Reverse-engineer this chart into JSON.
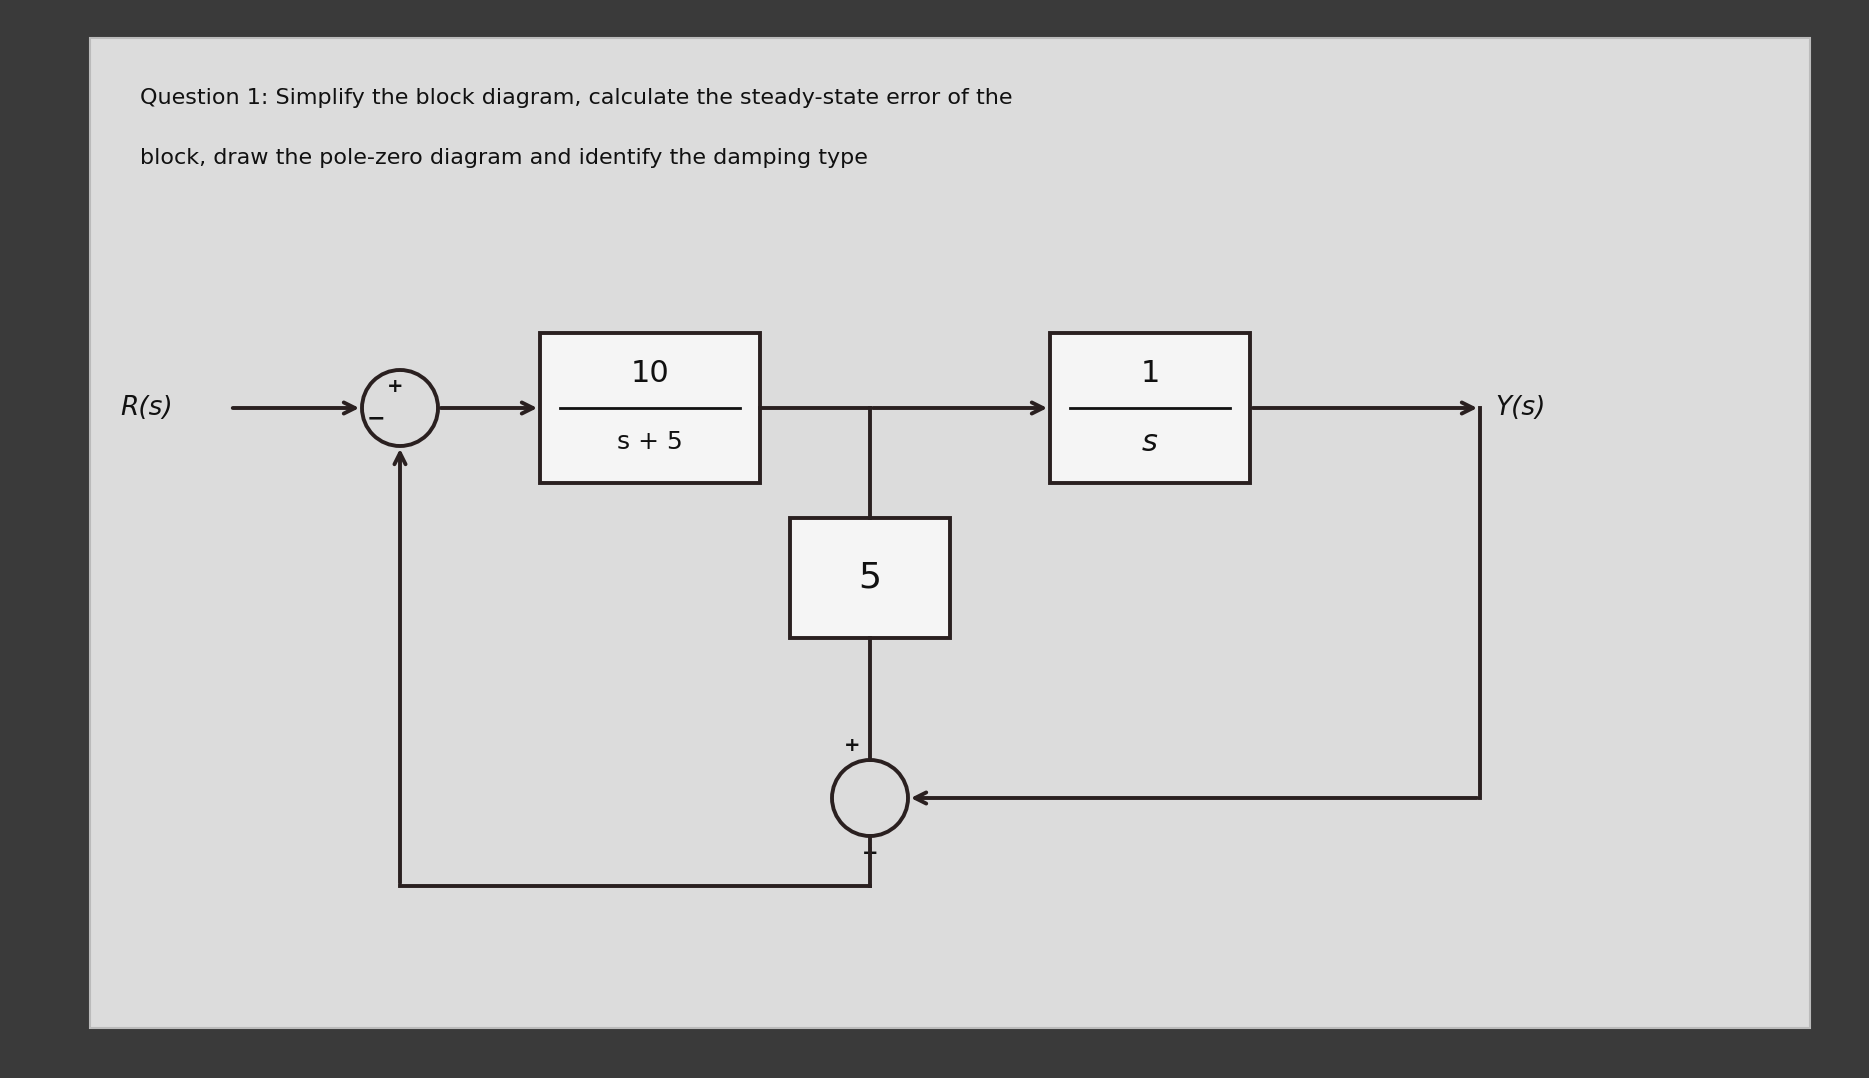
{
  "title_line1": "Question 1: Simplify the block diagram, calculate the steady-state error of the",
  "title_line2": "block, draw the pole-zero diagram and identify the damping type",
  "title_fontsize": 16,
  "paper_bg": "#e2e2e2",
  "outer_bg": "#3a3a3a",
  "box_facecolor": "#f5f5f5",
  "box_edgecolor": "#2a2020",
  "line_color": "#2a2020",
  "text_color": "#111111",
  "Rs_label": "R(s)",
  "Ys_label": "Y(s)",
  "block1_top": "10",
  "block1_bot": "s + 5",
  "block2_top": "1",
  "block2_bot": "s",
  "block3": "5",
  "lw": 2.8
}
